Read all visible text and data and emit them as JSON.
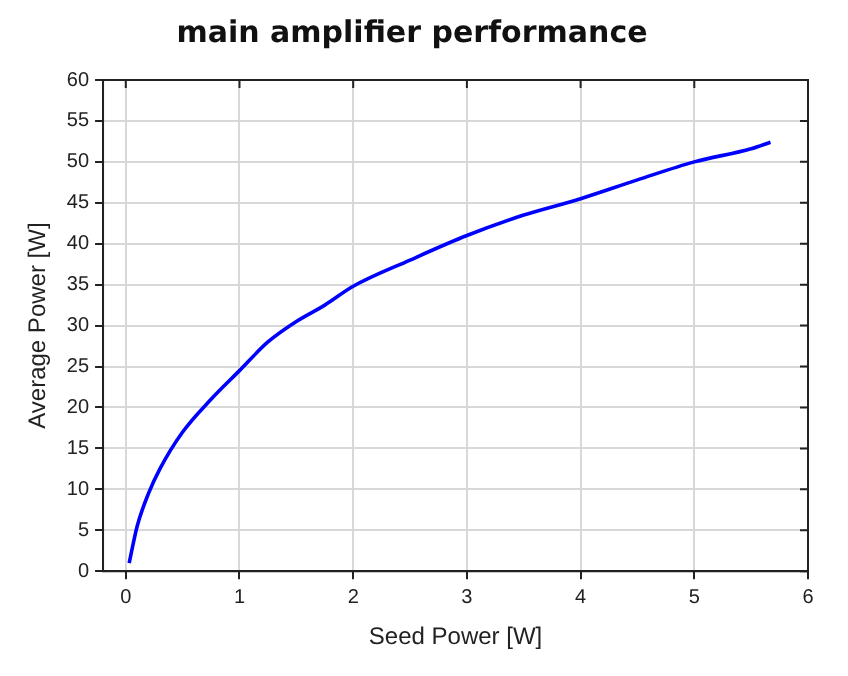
{
  "chart_data": {
    "type": "line",
    "title": "main amplifier performance",
    "xlabel": "Seed Power [W]",
    "ylabel": "Average Power [W]",
    "xlim": [
      -0.2,
      6
    ],
    "xticks": [
      0,
      1,
      2,
      3,
      4,
      5,
      6
    ],
    "ylim": [
      0,
      60
    ],
    "yticks": [
      0,
      5,
      10,
      15,
      20,
      25,
      30,
      35,
      40,
      45,
      50,
      55,
      60
    ],
    "grid": true,
    "marker": "none",
    "line_style": "solid",
    "series": [
      {
        "color": "#0000ff",
        "x": [
          0.03,
          0.1,
          0.2,
          0.3,
          0.5,
          0.75,
          1,
          1.25,
          1.5,
          1.75,
          2,
          2.5,
          3,
          3.5,
          4,
          4.5,
          5,
          5.5,
          5.67
        ],
        "values": [
          1,
          5.5,
          9.5,
          12.5,
          17,
          21,
          24.5,
          28,
          30.5,
          32.5,
          34.8,
          38,
          41,
          43.5,
          45.5,
          47.8,
          50,
          51.6,
          52.4
        ]
      }
    ]
  }
}
